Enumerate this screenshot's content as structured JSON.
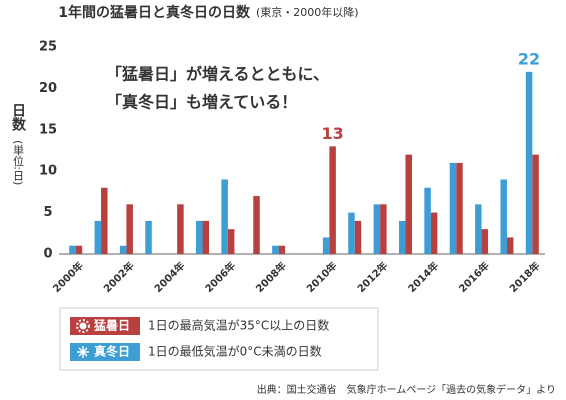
{
  "chart_data": {
    "type": "bar",
    "title": "1年間の猛暑日と真冬日の日数",
    "subtitle": "(東京・2000年以降)",
    "y_label": "日数",
    "y_unit": "(単位:日)",
    "annotation": [
      "「猛暑日」が増えるとともに、",
      "「真冬日」も増えている！"
    ],
    "categories": [
      "2000年",
      null,
      "2002年",
      null,
      "2004年",
      null,
      "2006年",
      null,
      "2008年",
      null,
      "2010年",
      null,
      "2012年",
      null,
      "2014年",
      null,
      "2016年",
      null,
      "2018年"
    ],
    "series": [
      {
        "name": "猛暑日",
        "description": "1日の最高気温が35°C以上の日数",
        "color": "#b8403f",
        "values": [
          1,
          8,
          6,
          0,
          6,
          4,
          3,
          7,
          1,
          0,
          13,
          4,
          6,
          12,
          5,
          11,
          3,
          2,
          12
        ],
        "value_labels": [
          null,
          null,
          null,
          null,
          null,
          null,
          null,
          null,
          null,
          null,
          "13",
          null,
          null,
          null,
          null,
          null,
          null,
          null,
          null
        ]
      },
      {
        "name": "真冬日",
        "description": "1日の最低気温が0°C未満の日数",
        "color": "#3d9ed6",
        "values": [
          1,
          4,
          1,
          4,
          0,
          4,
          9,
          0,
          1,
          0,
          2,
          5,
          6,
          4,
          8,
          11,
          6,
          9,
          22
        ],
        "value_labels": [
          null,
          null,
          null,
          null,
          null,
          null,
          null,
          null,
          null,
          null,
          null,
          null,
          null,
          null,
          null,
          null,
          null,
          null,
          "22"
        ]
      }
    ],
    "ylim": [
      0,
      25
    ],
    "yticks": [
      0,
      5,
      10,
      15,
      20,
      25
    ],
    "grid": false,
    "source": "出典：国土交通省　気象庁ホームページ「過去の気象データ」より"
  }
}
